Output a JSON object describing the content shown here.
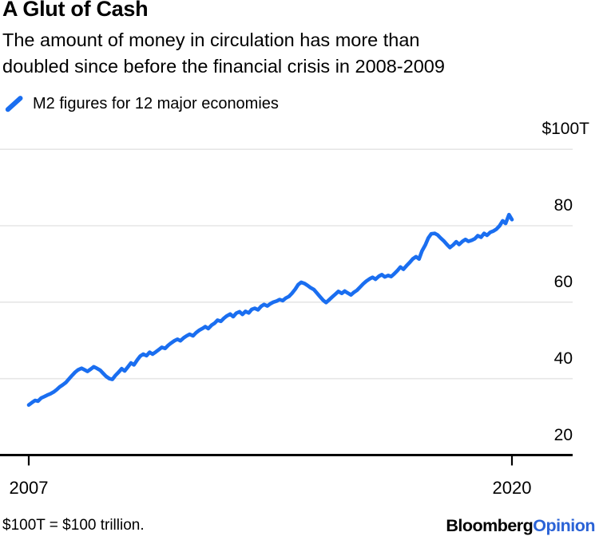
{
  "page": {
    "title": "A Glut of Cash",
    "subtitle_line1": "The amount of money in circulation has more than",
    "subtitle_line2": "doubled since before the financial crisis in 2008-2009",
    "footnote": "$100T = $100 trillion.",
    "brand": {
      "name": "Bloomberg",
      "division": "Opinion"
    }
  },
  "legend": {
    "series_label": "M2 figures for 12 major economies"
  },
  "colors": {
    "line": "#1a6ef0",
    "opinion_blue": "#2b63d6",
    "grid": "#e6e6e6",
    "axis": "#000000",
    "text": "#000000"
  },
  "chart_data": {
    "type": "line",
    "title": "A Glut of Cash",
    "subtitle": "The amount of money in circulation has more than doubled since before the financial crisis in 2008-2009",
    "legend": [
      "M2 figures for 12 major economies"
    ],
    "legend_position": "top-left",
    "y_unit": "USD trillions ($100T = $100 trillion)",
    "grid": "horizontal",
    "xlim": [
      2007,
      2020.05
    ],
    "ylim": [
      20,
      100
    ],
    "baseline_value": 20,
    "xticks": [
      {
        "value": 2007,
        "label": "2007"
      },
      {
        "value": 2020,
        "label": "2020"
      }
    ],
    "yticks": [
      {
        "value": 100,
        "label": "$100T"
      },
      {
        "value": 80,
        "label": "80"
      },
      {
        "value": 60,
        "label": "60"
      },
      {
        "value": 40,
        "label": "40"
      },
      {
        "value": 20,
        "label": "20"
      }
    ],
    "series": [
      {
        "name": "M2 figures for 12 major economies",
        "color": "#1a6ef0",
        "points": [
          [
            2007.0,
            33.1
          ],
          [
            2007.08,
            33.7
          ],
          [
            2007.17,
            34.3
          ],
          [
            2007.25,
            34.1
          ],
          [
            2007.33,
            34.9
          ],
          [
            2007.42,
            35.3
          ],
          [
            2007.5,
            35.7
          ],
          [
            2007.58,
            36.0
          ],
          [
            2007.67,
            36.5
          ],
          [
            2007.75,
            37.1
          ],
          [
            2007.83,
            37.8
          ],
          [
            2007.92,
            38.4
          ],
          [
            2008.0,
            39.0
          ],
          [
            2008.08,
            39.9
          ],
          [
            2008.17,
            40.9
          ],
          [
            2008.25,
            41.7
          ],
          [
            2008.33,
            42.3
          ],
          [
            2008.42,
            42.7
          ],
          [
            2008.5,
            42.3
          ],
          [
            2008.58,
            41.9
          ],
          [
            2008.67,
            42.5
          ],
          [
            2008.75,
            43.1
          ],
          [
            2008.83,
            42.7
          ],
          [
            2008.92,
            42.2
          ],
          [
            2009.0,
            41.4
          ],
          [
            2009.08,
            40.6
          ],
          [
            2009.17,
            40.0
          ],
          [
            2009.25,
            39.8
          ],
          [
            2009.33,
            40.8
          ],
          [
            2009.42,
            41.7
          ],
          [
            2009.5,
            42.6
          ],
          [
            2009.58,
            42.0
          ],
          [
            2009.67,
            43.1
          ],
          [
            2009.75,
            44.1
          ],
          [
            2009.83,
            43.6
          ],
          [
            2009.92,
            44.9
          ],
          [
            2010.0,
            45.9
          ],
          [
            2010.08,
            46.4
          ],
          [
            2010.17,
            46.0
          ],
          [
            2010.25,
            46.9
          ],
          [
            2010.33,
            46.4
          ],
          [
            2010.42,
            47.0
          ],
          [
            2010.5,
            47.6
          ],
          [
            2010.58,
            48.2
          ],
          [
            2010.67,
            47.9
          ],
          [
            2010.75,
            48.7
          ],
          [
            2010.83,
            49.3
          ],
          [
            2010.92,
            49.9
          ],
          [
            2011.0,
            50.3
          ],
          [
            2011.08,
            49.9
          ],
          [
            2011.17,
            50.7
          ],
          [
            2011.25,
            51.2
          ],
          [
            2011.33,
            51.6
          ],
          [
            2011.42,
            51.2
          ],
          [
            2011.5,
            52.0
          ],
          [
            2011.58,
            52.6
          ],
          [
            2011.67,
            53.1
          ],
          [
            2011.75,
            53.6
          ],
          [
            2011.83,
            53.1
          ],
          [
            2011.92,
            54.0
          ],
          [
            2012.0,
            54.5
          ],
          [
            2012.08,
            55.3
          ],
          [
            2012.17,
            55.0
          ],
          [
            2012.25,
            55.8
          ],
          [
            2012.33,
            56.4
          ],
          [
            2012.42,
            56.9
          ],
          [
            2012.5,
            56.2
          ],
          [
            2012.58,
            57.1
          ],
          [
            2012.67,
            57.5
          ],
          [
            2012.75,
            56.8
          ],
          [
            2012.83,
            57.6
          ],
          [
            2012.92,
            57.2
          ],
          [
            2013.0,
            58.1
          ],
          [
            2013.08,
            58.4
          ],
          [
            2013.17,
            58.0
          ],
          [
            2013.25,
            58.9
          ],
          [
            2013.33,
            59.4
          ],
          [
            2013.42,
            59.0
          ],
          [
            2013.5,
            59.6
          ],
          [
            2013.58,
            60.0
          ],
          [
            2013.67,
            60.3
          ],
          [
            2013.75,
            60.7
          ],
          [
            2013.83,
            60.4
          ],
          [
            2013.92,
            61.1
          ],
          [
            2014.0,
            61.5
          ],
          [
            2014.08,
            62.3
          ],
          [
            2014.17,
            63.4
          ],
          [
            2014.25,
            64.6
          ],
          [
            2014.33,
            65.2
          ],
          [
            2014.42,
            64.9
          ],
          [
            2014.5,
            64.4
          ],
          [
            2014.58,
            63.8
          ],
          [
            2014.67,
            63.3
          ],
          [
            2014.75,
            62.4
          ],
          [
            2014.83,
            61.5
          ],
          [
            2014.92,
            60.5
          ],
          [
            2015.0,
            59.9
          ],
          [
            2015.08,
            60.6
          ],
          [
            2015.17,
            61.4
          ],
          [
            2015.25,
            62.1
          ],
          [
            2015.33,
            62.8
          ],
          [
            2015.42,
            62.3
          ],
          [
            2015.5,
            62.9
          ],
          [
            2015.58,
            62.4
          ],
          [
            2015.67,
            61.9
          ],
          [
            2015.75,
            62.6
          ],
          [
            2015.83,
            63.1
          ],
          [
            2015.92,
            64.0
          ],
          [
            2016.0,
            64.8
          ],
          [
            2016.08,
            65.5
          ],
          [
            2016.17,
            66.1
          ],
          [
            2016.25,
            66.5
          ],
          [
            2016.33,
            66.0
          ],
          [
            2016.42,
            66.8
          ],
          [
            2016.5,
            67.2
          ],
          [
            2016.58,
            66.6
          ],
          [
            2016.67,
            67.0
          ],
          [
            2016.75,
            66.7
          ],
          [
            2016.83,
            67.4
          ],
          [
            2016.92,
            68.3
          ],
          [
            2017.0,
            69.2
          ],
          [
            2017.08,
            68.6
          ],
          [
            2017.17,
            69.6
          ],
          [
            2017.25,
            70.4
          ],
          [
            2017.33,
            71.3
          ],
          [
            2017.42,
            71.9
          ],
          [
            2017.5,
            71.3
          ],
          [
            2017.58,
            73.4
          ],
          [
            2017.67,
            75.0
          ],
          [
            2017.75,
            76.8
          ],
          [
            2017.83,
            77.9
          ],
          [
            2017.92,
            78.0
          ],
          [
            2018.0,
            77.6
          ],
          [
            2018.08,
            76.8
          ],
          [
            2018.17,
            76.0
          ],
          [
            2018.25,
            75.1
          ],
          [
            2018.33,
            74.3
          ],
          [
            2018.42,
            75.0
          ],
          [
            2018.5,
            75.8
          ],
          [
            2018.58,
            75.1
          ],
          [
            2018.67,
            75.9
          ],
          [
            2018.75,
            76.4
          ],
          [
            2018.83,
            75.9
          ],
          [
            2018.92,
            76.2
          ],
          [
            2019.0,
            76.6
          ],
          [
            2019.08,
            77.4
          ],
          [
            2019.17,
            77.0
          ],
          [
            2019.25,
            78.0
          ],
          [
            2019.33,
            77.5
          ],
          [
            2019.42,
            78.3
          ],
          [
            2019.5,
            78.6
          ],
          [
            2019.58,
            79.1
          ],
          [
            2019.67,
            80.0
          ],
          [
            2019.75,
            81.3
          ],
          [
            2019.83,
            80.6
          ],
          [
            2019.92,
            82.9
          ],
          [
            2020.0,
            81.6
          ]
        ]
      }
    ]
  }
}
